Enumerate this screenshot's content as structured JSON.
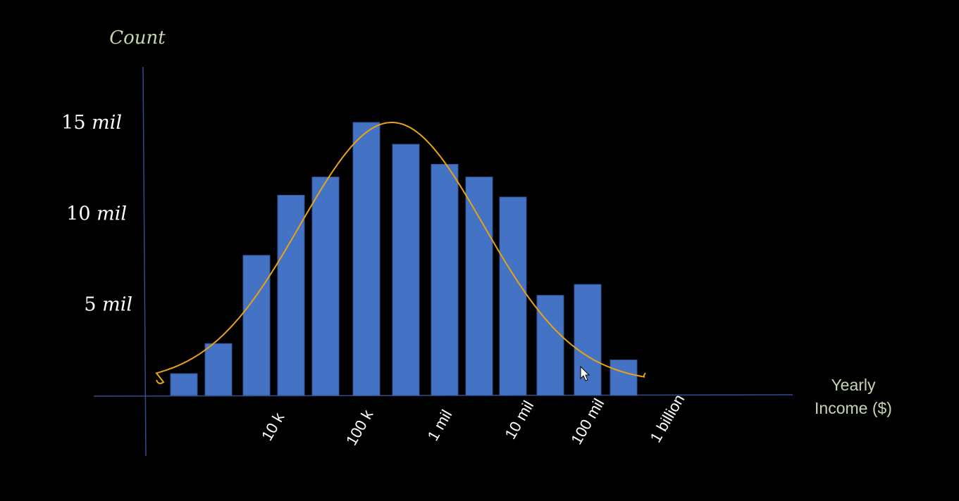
{
  "chart_data": {
    "type": "bar",
    "ylabel": "Count",
    "xlabel_lines": [
      "Yearly",
      "Income ($)"
    ],
    "y_ticks": [
      {
        "value": 5000000,
        "number": "5",
        "unit": "mil"
      },
      {
        "value": 10000000,
        "number": "10",
        "unit": "mil"
      },
      {
        "value": 15000000,
        "number": "15",
        "unit": "mil"
      }
    ],
    "ylim": [
      0,
      18000000
    ],
    "x_ticks": [
      "10 k",
      "100 k",
      "1 mil",
      "10 mil",
      "100 mil",
      "1 billion"
    ],
    "values": [
      1200000,
      2850000,
      7700000,
      11000000,
      12000000,
      15000000,
      13800000,
      12700000,
      12000000,
      10900000,
      5500000,
      6100000,
      1950000
    ],
    "curve": {
      "type": "bell",
      "peak": 15000000,
      "baseline": 700000
    },
    "colors": {
      "bar": "#4472C4",
      "bar_edge": "#2F5597",
      "curve": "#E8A317",
      "axis": "#3A4A8A",
      "ylabel": "#C8D6B0",
      "xlabel": "#C8D6B0",
      "tick_text": "#FFFFFF"
    }
  }
}
